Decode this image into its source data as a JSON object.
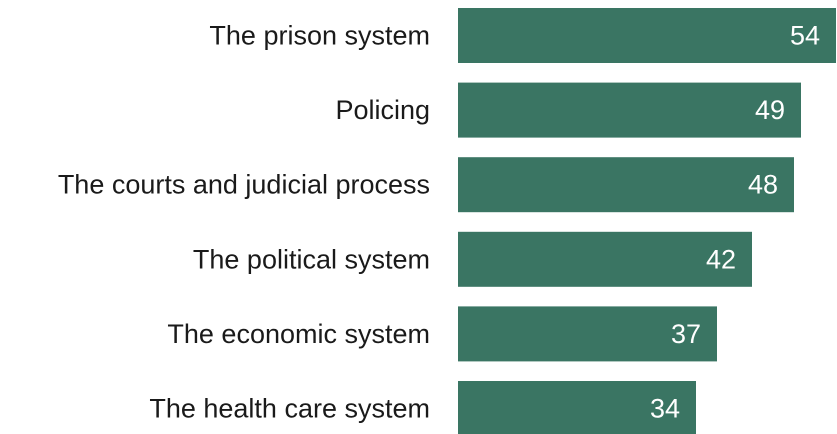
{
  "chart_data": {
    "type": "bar",
    "orientation": "horizontal",
    "categories": [
      "The prison system",
      "Policing",
      "The courts and judicial process",
      "The political system",
      "The economic system",
      "The health care system"
    ],
    "values": [
      54,
      49,
      48,
      42,
      37,
      34
    ],
    "value_labels": [
      "54",
      "49",
      "48",
      "42",
      "37",
      "34"
    ],
    "title": "",
    "xlabel": "",
    "ylabel": "",
    "legend": "none",
    "grid": false,
    "colors": {
      "bar": "#3a7563",
      "value_text": "#ffffff",
      "category_text": "#1a1a1a"
    }
  }
}
